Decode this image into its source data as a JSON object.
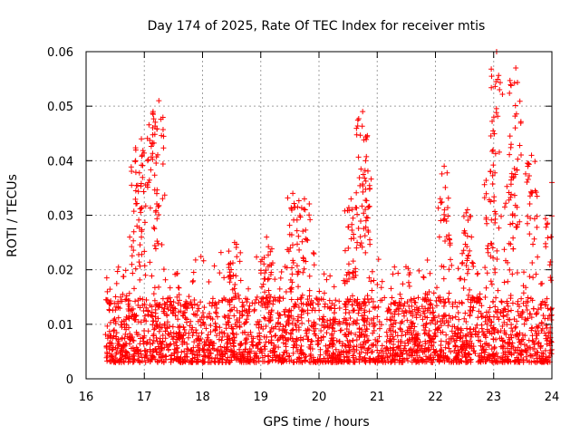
{
  "chart_data": {
    "type": "scatter",
    "title": "Day 174 of 2025, Rate Of TEC Index for receiver mtis",
    "xlabel": "GPS time / hours",
    "ylabel": "ROTI / TECUs",
    "xlim": [
      16,
      24
    ],
    "ylim": [
      0,
      0.06
    ],
    "x_ticks": [
      16,
      17,
      18,
      19,
      20,
      21,
      22,
      23,
      24
    ],
    "x_tick_labels": [
      "16",
      "17",
      "18",
      "19",
      "20",
      "21",
      "22",
      "23",
      "24"
    ],
    "y_ticks": [
      0,
      0.01,
      0.02,
      0.03,
      0.04,
      0.05,
      0.06
    ],
    "y_tick_labels": [
      "0",
      "0.01",
      "0.02",
      "0.03",
      "0.04",
      "0.05",
      "0.06"
    ],
    "grid": true,
    "marker": "plus",
    "color": "#ff0000",
    "series": [
      {
        "name": "ROTI",
        "x_range": [
          16.33,
          24.0
        ],
        "typical_range": [
          0.003,
          0.015
        ],
        "peaks": [
          {
            "x": 16.85,
            "y": 0.04
          },
          {
            "x": 16.95,
            "y": 0.044
          },
          {
            "x": 17.15,
            "y": 0.049
          },
          {
            "x": 17.25,
            "y": 0.051
          },
          {
            "x": 18.55,
            "y": 0.025
          },
          {
            "x": 19.1,
            "y": 0.026
          },
          {
            "x": 19.55,
            "y": 0.034
          },
          {
            "x": 19.75,
            "y": 0.033
          },
          {
            "x": 20.55,
            "y": 0.033
          },
          {
            "x": 20.75,
            "y": 0.049
          },
          {
            "x": 20.8,
            "y": 0.04
          },
          {
            "x": 22.15,
            "y": 0.039
          },
          {
            "x": 22.55,
            "y": 0.031
          },
          {
            "x": 22.95,
            "y": 0.038
          },
          {
            "x": 23.05,
            "y": 0.06
          },
          {
            "x": 23.3,
            "y": 0.043
          },
          {
            "x": 23.38,
            "y": 0.057
          },
          {
            "x": 23.65,
            "y": 0.041
          },
          {
            "x": 24.0,
            "y": 0.036
          }
        ]
      }
    ]
  }
}
